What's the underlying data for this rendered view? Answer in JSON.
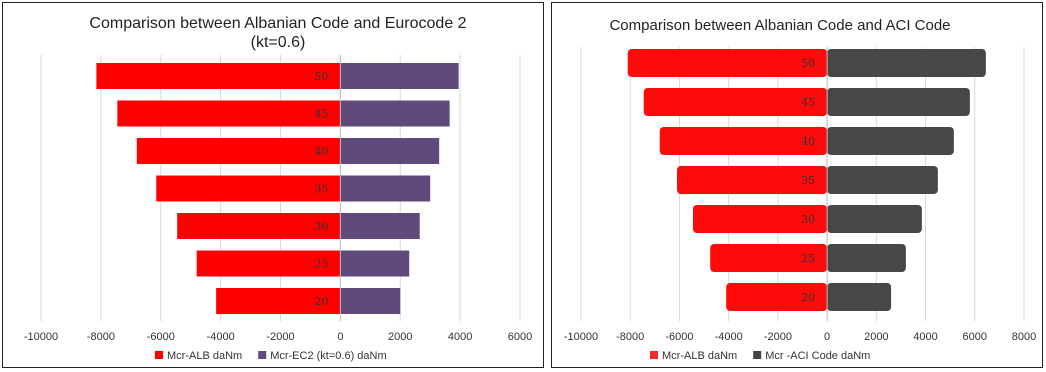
{
  "charts": [
    {
      "title_lines": [
        "Comparison between Albanian Code and Eurocode 2",
        "(kt=0.6)"
      ],
      "legend": [
        {
          "label": "Mcr-ALB daNm",
          "color": "#ff0000"
        },
        {
          "label": "Mcr-EC2 (kt=0.6) daNm",
          "color": "#604a7b"
        }
      ],
      "bar_colors": [
        "#ff0000",
        "#604a7b"
      ]
    },
    {
      "title_lines": [
        "Comparison between Albanian Code and ACI Code"
      ],
      "legend": [
        {
          "label": "Mcr-ALB daNm",
          "color": "#ee2a2a"
        },
        {
          "label": "Mcr -ACI Code daNm",
          "color": "#444444"
        }
      ],
      "bar_colors": [
        "#ff0a0a",
        "#474747"
      ]
    }
  ],
  "chart_data": [
    {
      "type": "bar",
      "orientation": "horizontal",
      "stacked": true,
      "title": "Comparison between Albanian Code and Eurocode 2 (kt=0.6)",
      "categories": [
        "50",
        "45",
        "40",
        "35",
        "30",
        "25",
        "20"
      ],
      "series": [
        {
          "name": "Mcr-ALB daNm",
          "values": [
            -8150,
            -7450,
            -6800,
            -6150,
            -5450,
            -4800,
            -4150
          ]
        },
        {
          "name": "Mcr-EC2 (kt=0.6) daNm",
          "values": [
            3950,
            3650,
            3300,
            3000,
            2650,
            2300,
            2000
          ]
        }
      ],
      "xlim": [
        -10000,
        6000
      ],
      "xticks": [
        "-10000",
        "-8000",
        "-6000",
        "-4000",
        "-2000",
        "0",
        "2000",
        "4000",
        "6000"
      ],
      "grid": true,
      "legend_position": "bottom"
    },
    {
      "type": "bar",
      "orientation": "horizontal",
      "stacked": true,
      "title": "Comparison between Albanian Code and ACI Code",
      "categories": [
        "50",
        "45",
        "40",
        "35",
        "30",
        "25",
        "20"
      ],
      "series": [
        {
          "name": "Mcr-ALB daNm",
          "values": [
            -8100,
            -7450,
            -6800,
            -6100,
            -5450,
            -4750,
            -4100
          ]
        },
        {
          "name": "Mcr -ACI Code daNm",
          "values": [
            6450,
            5800,
            5150,
            4500,
            3850,
            3200,
            2600
          ]
        }
      ],
      "xlim": [
        -10000,
        8000
      ],
      "xticks": [
        "-10000",
        "-8000",
        "-6000",
        "-4000",
        "-2000",
        "0",
        "2000",
        "4000",
        "6000",
        "8000"
      ],
      "grid": true,
      "legend_position": "bottom"
    }
  ]
}
